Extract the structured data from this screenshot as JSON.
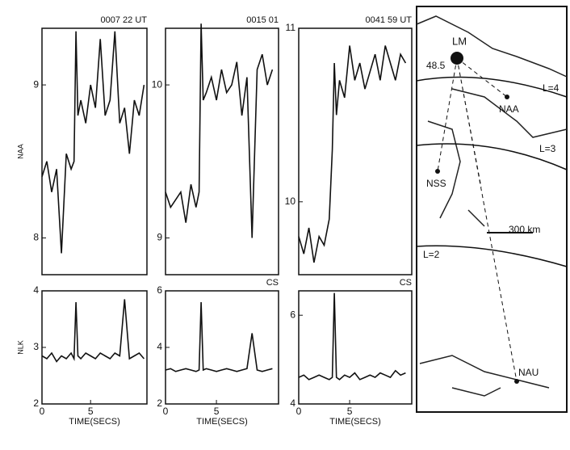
{
  "chart_data": [
    {
      "type": "line",
      "title": "0007 22 UT",
      "ylabel": "NAA",
      "color": "#111",
      "xlim": [
        0,
        10.8
      ],
      "ylim": [
        7.76,
        9.37
      ],
      "yticks": [
        8,
        9
      ],
      "x": [
        0,
        0.5,
        1,
        1.5,
        2,
        2.5,
        3,
        3.3,
        3.5,
        3.7,
        4,
        4.5,
        5,
        5.5,
        6,
        6.5,
        7,
        7.5,
        8,
        8.5,
        9,
        9.5,
        10,
        10.5
      ],
      "values": [
        8.4,
        8.5,
        8.3,
        8.45,
        7.9,
        8.55,
        8.45,
        8.5,
        9.35,
        8.8,
        8.9,
        8.75,
        9.0,
        8.85,
        9.3,
        8.8,
        8.9,
        9.35,
        8.75,
        8.85,
        8.55,
        8.9,
        8.8,
        9.0
      ]
    },
    {
      "type": "line",
      "title": "0015 01",
      "color": "#111",
      "xlim": [
        0,
        11.1
      ],
      "ylim": [
        8.76,
        10.37
      ],
      "yticks": [
        9,
        10
      ],
      "x": [
        0,
        0.5,
        1,
        1.5,
        2,
        2.5,
        3,
        3.3,
        3.5,
        3.7,
        4,
        4.5,
        5,
        5.5,
        6,
        6.5,
        7,
        7.5,
        8,
        8.5,
        9,
        9.5,
        10,
        10.5
      ],
      "values": [
        9.3,
        9.2,
        9.25,
        9.3,
        9.1,
        9.35,
        9.2,
        9.3,
        10.4,
        9.9,
        9.95,
        10.05,
        9.9,
        10.1,
        9.95,
        10.0,
        10.15,
        9.8,
        10.05,
        9.0,
        10.1,
        10.2,
        10.0,
        10.1
      ]
    },
    {
      "type": "line",
      "title": "0041 59 UT",
      "color": "#111",
      "xlim": [
        0,
        11.1
      ],
      "ylim": [
        9.58,
        11
      ],
      "yticks": [
        10,
        11
      ],
      "x": [
        0,
        0.5,
        1,
        1.5,
        2,
        2.5,
        3,
        3.3,
        3.5,
        3.7,
        4,
        4.5,
        5,
        5.5,
        6,
        6.5,
        7,
        7.5,
        8,
        8.5,
        9,
        9.5,
        10,
        10.5
      ],
      "values": [
        9.8,
        9.7,
        9.85,
        9.65,
        9.8,
        9.75,
        9.9,
        10.3,
        10.8,
        10.5,
        10.7,
        10.6,
        10.9,
        10.7,
        10.8,
        10.65,
        10.75,
        10.85,
        10.7,
        10.9,
        10.8,
        10.7,
        10.85,
        10.8
      ]
    },
    {
      "type": "line",
      "ylabel": "NLK",
      "xlabel": "TIME(SECS)",
      "color": "#111",
      "xlim": [
        0,
        10.8
      ],
      "ylim": [
        2,
        4
      ],
      "yticks": [
        2,
        3,
        4
      ],
      "xticks": [
        0,
        5
      ],
      "x": [
        0,
        0.5,
        1,
        1.5,
        2,
        2.5,
        3,
        3.3,
        3.5,
        3.7,
        4,
        4.5,
        5,
        5.5,
        6,
        6.5,
        7,
        7.5,
        8,
        8.5,
        9,
        9.5,
        10,
        10.5
      ],
      "values": [
        2.85,
        2.8,
        2.9,
        2.75,
        2.85,
        2.8,
        2.9,
        2.8,
        3.8,
        2.85,
        2.8,
        2.9,
        2.85,
        2.8,
        2.9,
        2.85,
        2.8,
        2.9,
        2.85,
        3.85,
        2.8,
        2.85,
        2.9,
        2.8
      ]
    },
    {
      "type": "line",
      "title": "CS",
      "xlabel": "TIME(SECS)",
      "color": "#111",
      "xlim": [
        0,
        11.1
      ],
      "ylim": [
        2,
        6
      ],
      "yticks": [
        2,
        4,
        6
      ],
      "xticks": [
        0,
        5
      ],
      "x": [
        0,
        0.5,
        1,
        1.5,
        2,
        2.5,
        3,
        3.3,
        3.5,
        3.7,
        4,
        4.5,
        5,
        5.5,
        6,
        6.5,
        7,
        7.5,
        8,
        8.5,
        9,
        9.5,
        10,
        10.5
      ],
      "values": [
        3.2,
        3.25,
        3.15,
        3.2,
        3.25,
        3.2,
        3.15,
        3.2,
        5.6,
        3.2,
        3.25,
        3.2,
        3.15,
        3.2,
        3.25,
        3.2,
        3.15,
        3.2,
        3.25,
        4.5,
        3.2,
        3.15,
        3.2,
        3.25
      ]
    },
    {
      "type": "line",
      "title": "CS",
      "xlabel": "TIME(SECS)",
      "color": "#111",
      "xlim": [
        0,
        11.1
      ],
      "ylim": [
        4,
        6.55
      ],
      "yticks": [
        4,
        6
      ],
      "xticks": [
        0,
        5
      ],
      "x": [
        0,
        0.5,
        1,
        1.5,
        2,
        2.5,
        3,
        3.3,
        3.5,
        3.7,
        4,
        4.5,
        5,
        5.5,
        6,
        6.5,
        7,
        7.5,
        8,
        8.5,
        9,
        9.5,
        10,
        10.5
      ],
      "values": [
        4.6,
        4.65,
        4.55,
        4.6,
        4.65,
        4.6,
        4.55,
        4.6,
        6.5,
        4.6,
        4.55,
        4.65,
        4.6,
        4.7,
        4.55,
        4.6,
        4.65,
        4.6,
        4.7,
        4.65,
        4.6,
        4.75,
        4.65,
        4.7
      ]
    }
  ],
  "map": {
    "labels": [
      "LM",
      "48.5",
      "L=4",
      "NAA",
      "L=3",
      "NSS",
      "300 km",
      "L=2",
      "NAU"
    ]
  }
}
